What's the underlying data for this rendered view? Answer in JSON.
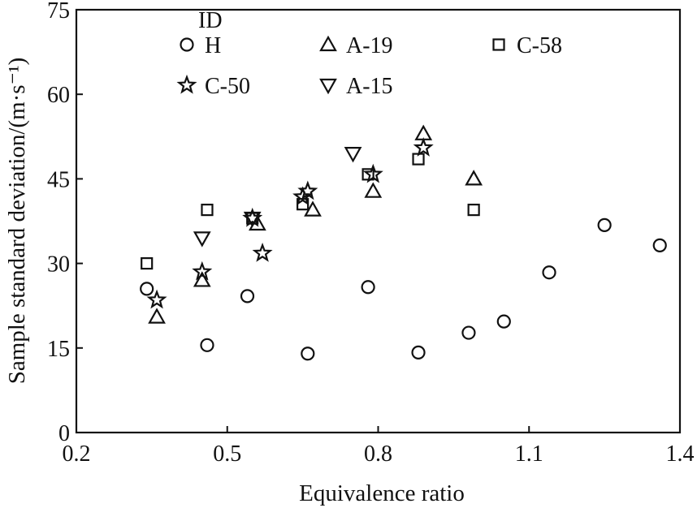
{
  "chart_data": {
    "type": "scatter",
    "xlabel": "Equivalence ratio",
    "ylabel": "Sample standard deviation/(m·s⁻¹)",
    "xlim": [
      0.2,
      1.4
    ],
    "ylim": [
      0,
      75
    ],
    "xticks": [
      "0.2",
      "0.5",
      "0.8",
      "1.1",
      "1.4"
    ],
    "yticks": [
      "0",
      "15",
      "30",
      "45",
      "60",
      "75"
    ],
    "grid": false,
    "legend": {
      "title": "ID",
      "placement": "top-left"
    },
    "series": [
      {
        "name": "H",
        "marker": "circle",
        "points": [
          [
            0.34,
            25.5
          ],
          [
            0.46,
            15.5
          ],
          [
            0.54,
            24.2
          ],
          [
            0.66,
            14.0
          ],
          [
            0.78,
            25.8
          ],
          [
            0.88,
            14.2
          ],
          [
            0.98,
            17.7
          ],
          [
            1.05,
            19.7
          ],
          [
            1.14,
            28.4
          ],
          [
            1.25,
            36.8
          ],
          [
            1.36,
            33.2
          ]
        ]
      },
      {
        "name": "A-19",
        "marker": "triangle-up",
        "points": [
          [
            0.36,
            20.5
          ],
          [
            0.45,
            27.0
          ],
          [
            0.56,
            37.0
          ],
          [
            0.67,
            39.5
          ],
          [
            0.79,
            42.8
          ],
          [
            0.89,
            53.0
          ],
          [
            0.99,
            45.0
          ]
        ]
      },
      {
        "name": "C-58",
        "marker": "square",
        "points": [
          [
            0.34,
            30.0
          ],
          [
            0.46,
            39.5
          ],
          [
            0.55,
            38.0
          ],
          [
            0.65,
            40.5
          ],
          [
            0.78,
            45.8
          ],
          [
            0.88,
            48.5
          ],
          [
            0.99,
            39.5
          ]
        ]
      },
      {
        "name": "C-50",
        "marker": "star",
        "points": [
          [
            0.36,
            23.5
          ],
          [
            0.45,
            28.5
          ],
          [
            0.55,
            38.0
          ],
          [
            0.57,
            31.8
          ],
          [
            0.65,
            41.8
          ],
          [
            0.66,
            42.8
          ],
          [
            0.79,
            45.8
          ],
          [
            0.89,
            50.5
          ]
        ]
      },
      {
        "name": "A-15",
        "marker": "triangle-down",
        "points": [
          [
            0.45,
            34.5
          ],
          [
            0.55,
            38.0
          ],
          [
            0.75,
            49.5
          ]
        ]
      }
    ]
  }
}
